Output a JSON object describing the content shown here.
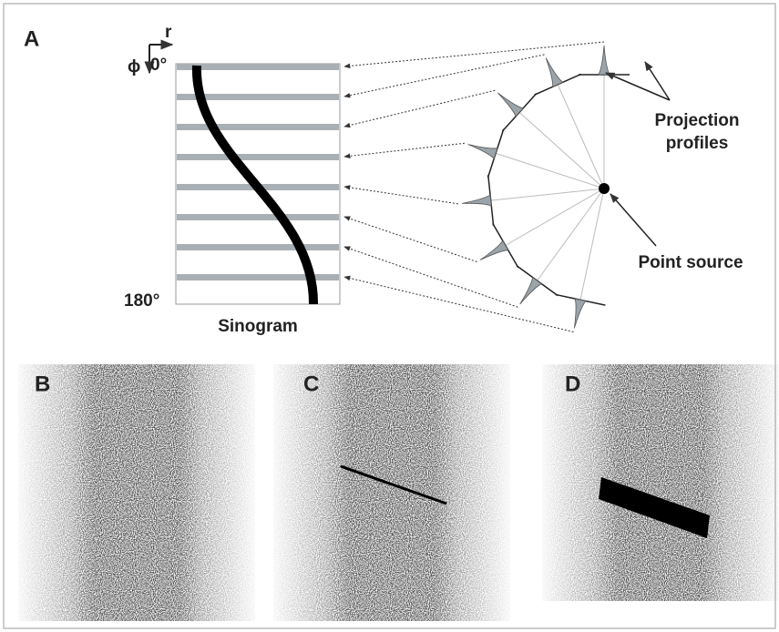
{
  "panel_a": {
    "label": "A",
    "axis_r": "r",
    "axis_phi": "ϕ",
    "angle_start": "0°",
    "angle_end": "180°",
    "sinogram_label": "Sinogram",
    "projection_label": [
      "Projection",
      "profiles"
    ],
    "point_source_label": "Point source"
  },
  "panels": [
    {
      "label": "B"
    },
    {
      "label": "C"
    },
    {
      "label": "D"
    }
  ]
}
